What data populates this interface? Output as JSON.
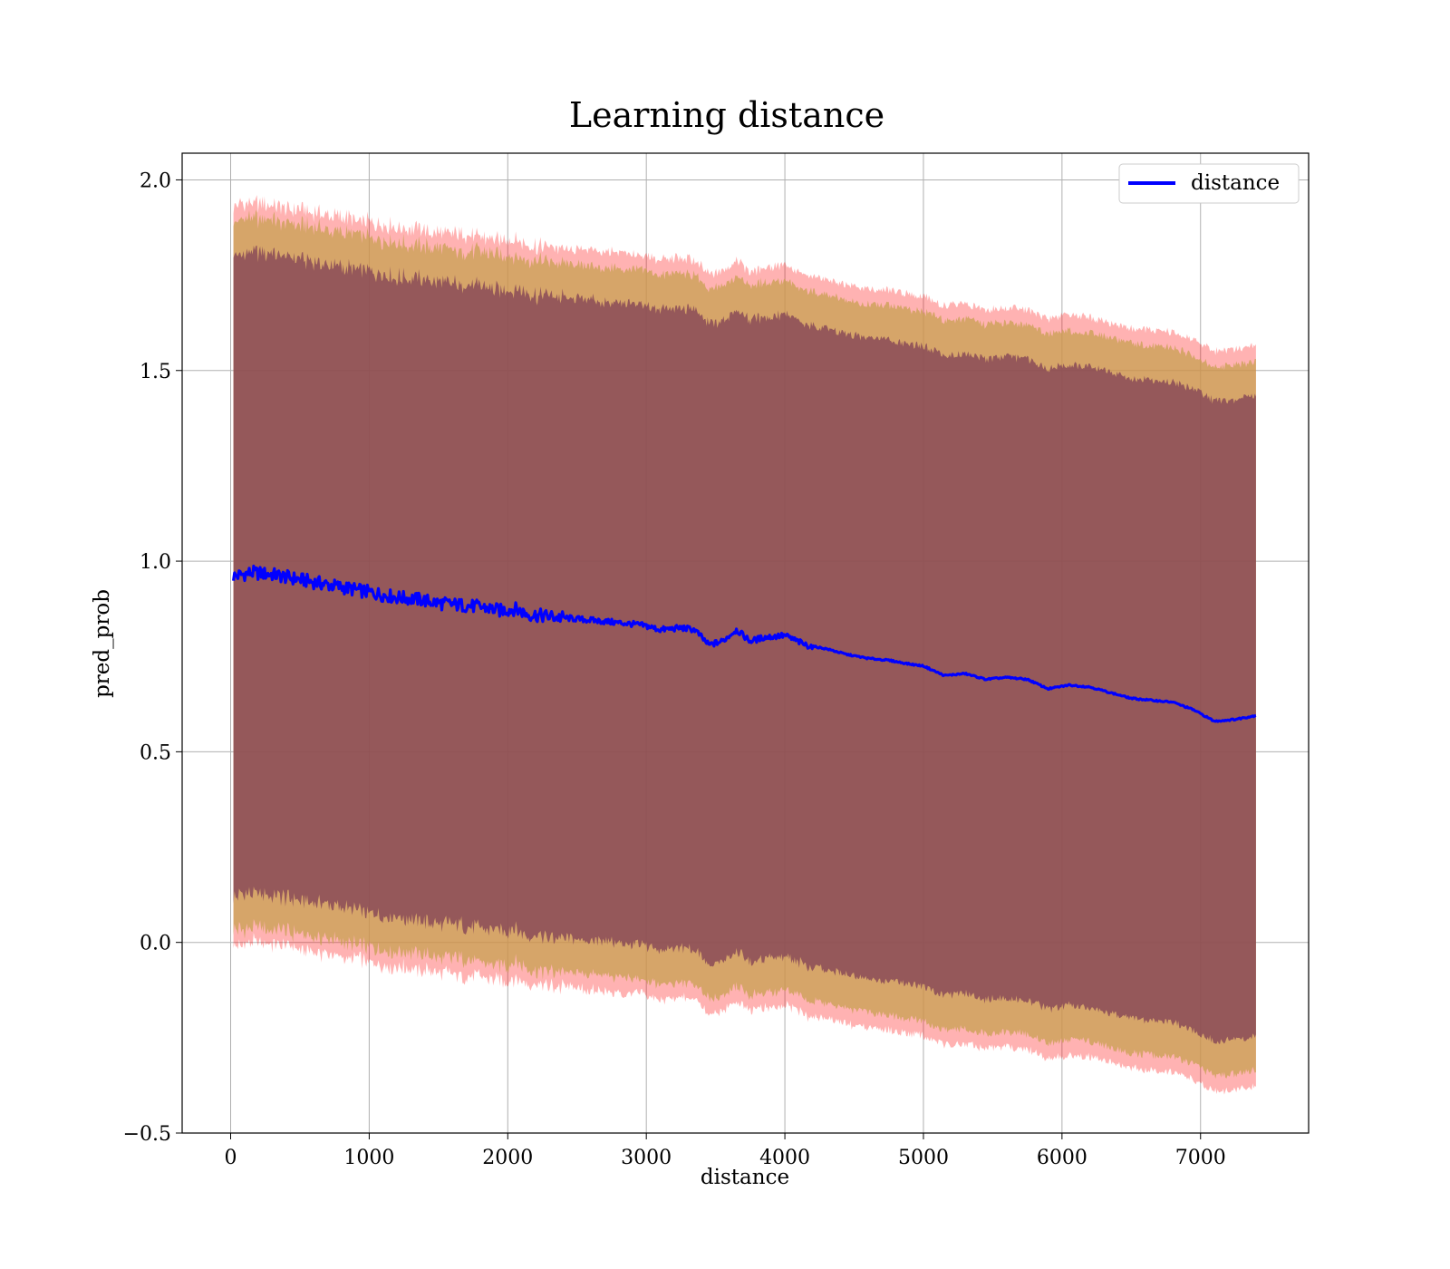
{
  "chart_data": {
    "type": "line",
    "title": "Learning distance",
    "xlabel": "distance",
    "ylabel": "pred_prob",
    "xlim": [
      -350,
      7780
    ],
    "ylim": [
      -0.5,
      2.07
    ],
    "xticks": [
      0,
      1000,
      2000,
      3000,
      4000,
      5000,
      6000,
      7000
    ],
    "yticks": [
      -0.5,
      0.0,
      0.5,
      1.0,
      1.5,
      2.0
    ],
    "ytick_labels": [
      "−0.5",
      "0.0",
      "0.5",
      "1.0",
      "1.5",
      "2.0"
    ],
    "grid": true,
    "legend": {
      "position": "top-right",
      "entries": [
        "distance"
      ]
    },
    "colors": {
      "line": "#0000ff",
      "band_outer": "#ff0000",
      "band_middle": "#c8a050",
      "band_inner": "#7b3a55"
    },
    "series": [
      {
        "name": "distance",
        "x": [
          20,
          150,
          300,
          450,
          600,
          750,
          900,
          1050,
          1200,
          1350,
          1500,
          1650,
          1800,
          1950,
          2050,
          2150,
          2300,
          2450,
          2600,
          2750,
          2900,
          3000,
          3100,
          3250,
          3350,
          3450,
          3550,
          3650,
          3750,
          3850,
          4000,
          4150,
          4300,
          4450,
          4600,
          4750,
          4900,
          5000,
          5150,
          5300,
          5450,
          5600,
          5750,
          5900,
          6050,
          6200,
          6350,
          6500,
          6650,
          6800,
          6950,
          7100,
          7250,
          7400
        ],
        "y": [
          0.96,
          0.97,
          0.965,
          0.955,
          0.945,
          0.935,
          0.925,
          0.915,
          0.905,
          0.9,
          0.89,
          0.885,
          0.88,
          0.87,
          0.875,
          0.86,
          0.855,
          0.85,
          0.845,
          0.84,
          0.835,
          0.83,
          0.82,
          0.825,
          0.82,
          0.78,
          0.79,
          0.82,
          0.79,
          0.8,
          0.805,
          0.78,
          0.77,
          0.755,
          0.745,
          0.74,
          0.73,
          0.725,
          0.7,
          0.705,
          0.69,
          0.695,
          0.69,
          0.665,
          0.675,
          0.67,
          0.655,
          0.64,
          0.635,
          0.63,
          0.61,
          0.58,
          0.585,
          0.595
        ]
      }
    ],
    "bands": [
      {
        "name": "outer",
        "half_width": 0.97,
        "end_half_width": 0.97
      },
      {
        "name": "middle",
        "half_width": 0.93,
        "end_half_width": 0.93
      },
      {
        "name": "inner",
        "half_width": 0.84,
        "end_half_width": 0.84
      }
    ]
  }
}
